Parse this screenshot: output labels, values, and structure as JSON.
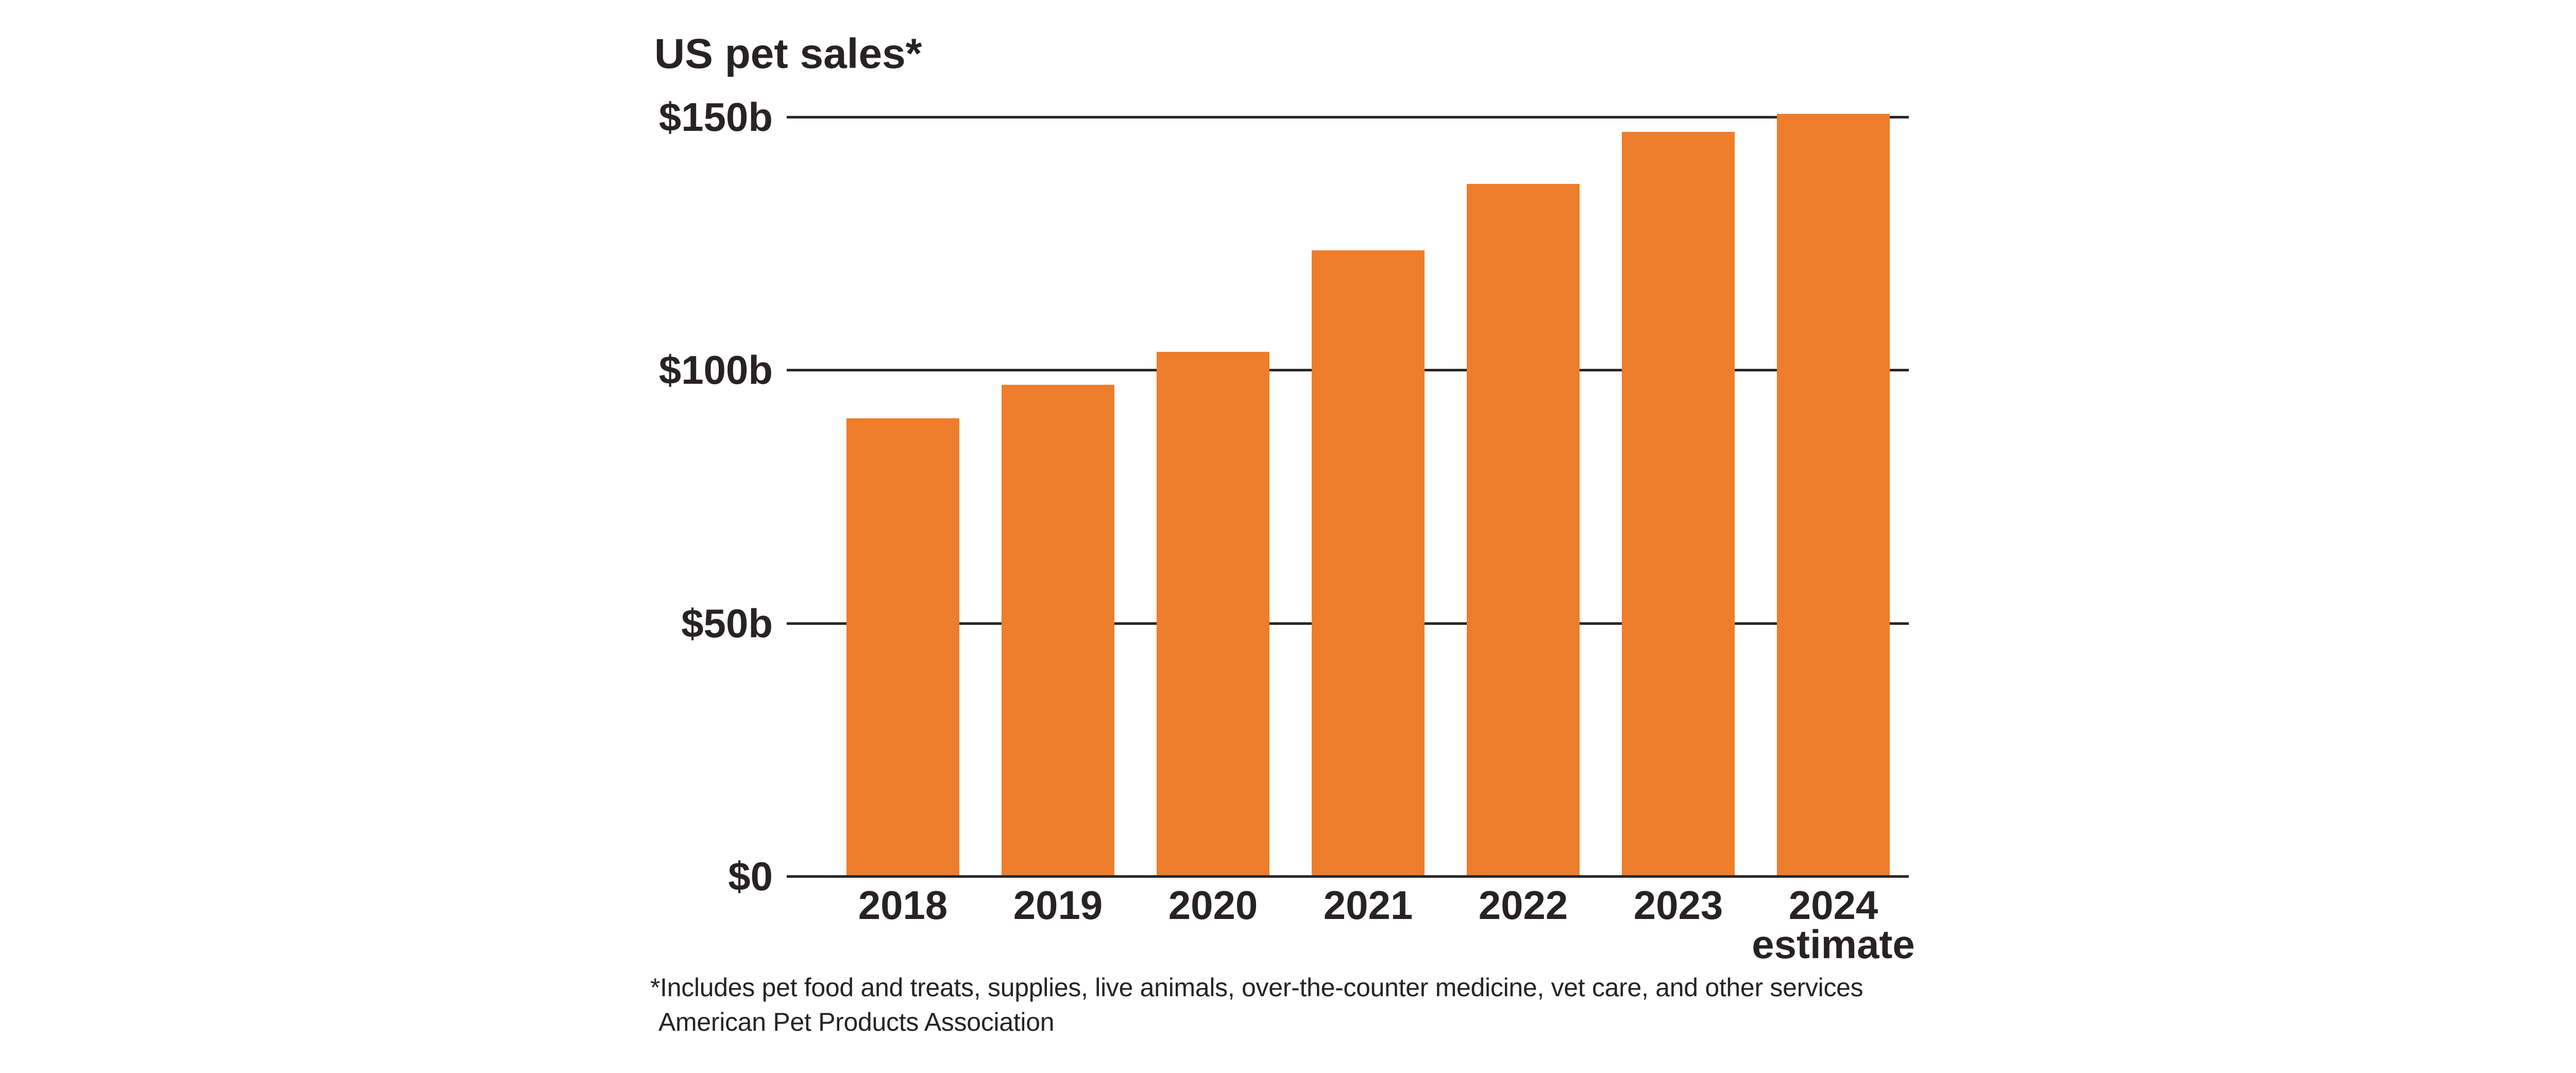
{
  "chart": {
    "title": "US pet sales*",
    "footnote": "*Includes pet food and treats, supplies, live animals, over-the-counter medicine, vet care, and other services",
    "source": "American Pet Products Association",
    "estimate_note": "estimate"
  },
  "chart_data": {
    "type": "bar",
    "title": "US pet sales*",
    "categories": [
      "2018",
      "2019",
      "2020",
      "2021",
      "2022",
      "2023",
      "2024"
    ],
    "values": [
      90.5,
      97.1,
      103.6,
      123.6,
      136.8,
      147.0,
      150.6
    ],
    "last_category_note": "estimate",
    "unit": "billions of US dollars",
    "ylim": [
      0,
      150
    ],
    "yticks": [
      {
        "value": 0,
        "label": "$0"
      },
      {
        "value": 50,
        "label": "$50b"
      },
      {
        "value": 100,
        "label": "$100b"
      },
      {
        "value": 150,
        "label": "$150b"
      }
    ],
    "grid": "horizontal",
    "legend": "none",
    "footnote": "*Includes pet food and treats, supplies, live animals, over-the-counter medicine, vet care, and other services",
    "source": "American Pet Products Association"
  },
  "colors": {
    "bar": "#ee7d2c",
    "text": "#272324",
    "grid": "#2b2728",
    "background": "#ffffff"
  }
}
